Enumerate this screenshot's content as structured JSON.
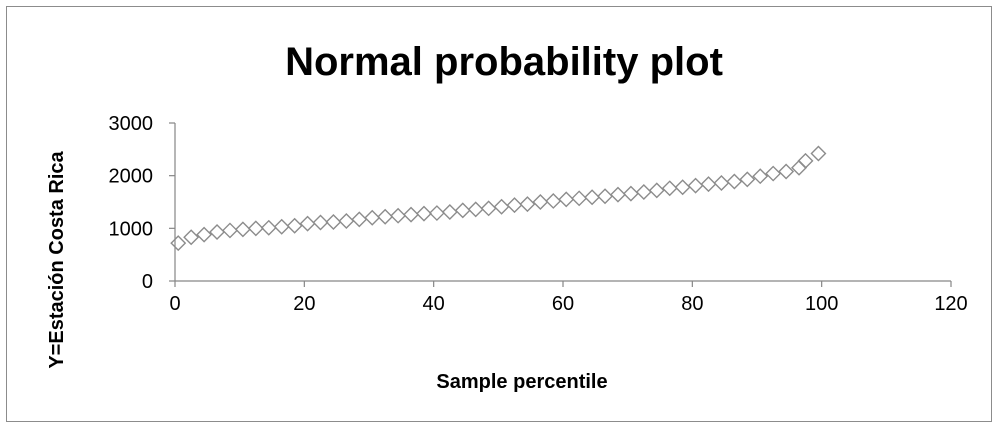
{
  "chart_data": {
    "type": "scatter",
    "title": "Normal probability plot",
    "xlabel": "Sample percentile",
    "ylabel": "Y=Estación Costa Rica",
    "xlim": [
      0,
      120
    ],
    "ylim": [
      0,
      3000
    ],
    "x_ticks": [
      "0",
      "20",
      "40",
      "60",
      "80",
      "100",
      "120"
    ],
    "y_ticks": [
      "0",
      "1000",
      "2000",
      "3000"
    ],
    "grid": false,
    "legend": "none",
    "marker_color": "#8c8c8c",
    "series": [
      {
        "x": [
          0.5,
          2.5,
          4.5,
          6.5,
          8.5,
          10.5,
          12.5,
          14.5,
          16.5,
          18.5,
          20.5,
          22.5,
          24.5,
          26.5,
          28.5,
          30.5,
          32.5,
          34.5,
          36.5,
          38.5,
          40.5,
          42.5,
          44.5,
          46.5,
          48.5,
          50.5,
          52.5,
          54.5,
          56.5,
          58.5,
          60.5,
          62.5,
          64.5,
          66.5,
          68.5,
          70.5,
          72.5,
          74.5,
          76.5,
          78.5,
          80.5,
          82.5,
          84.5,
          86.5,
          88.5,
          90.5,
          92.5,
          94.5,
          96.5,
          97.5,
          99.5
        ],
        "y": [
          720,
          830,
          880,
          930,
          960,
          980,
          1000,
          1010,
          1030,
          1050,
          1090,
          1110,
          1120,
          1140,
          1170,
          1200,
          1220,
          1240,
          1260,
          1280,
          1290,
          1310,
          1340,
          1360,
          1380,
          1410,
          1440,
          1460,
          1500,
          1520,
          1550,
          1570,
          1590,
          1610,
          1640,
          1660,
          1690,
          1720,
          1760,
          1780,
          1810,
          1840,
          1860,
          1890,
          1930,
          1990,
          2040,
          2080,
          2150,
          2280,
          2420
        ]
      }
    ]
  }
}
